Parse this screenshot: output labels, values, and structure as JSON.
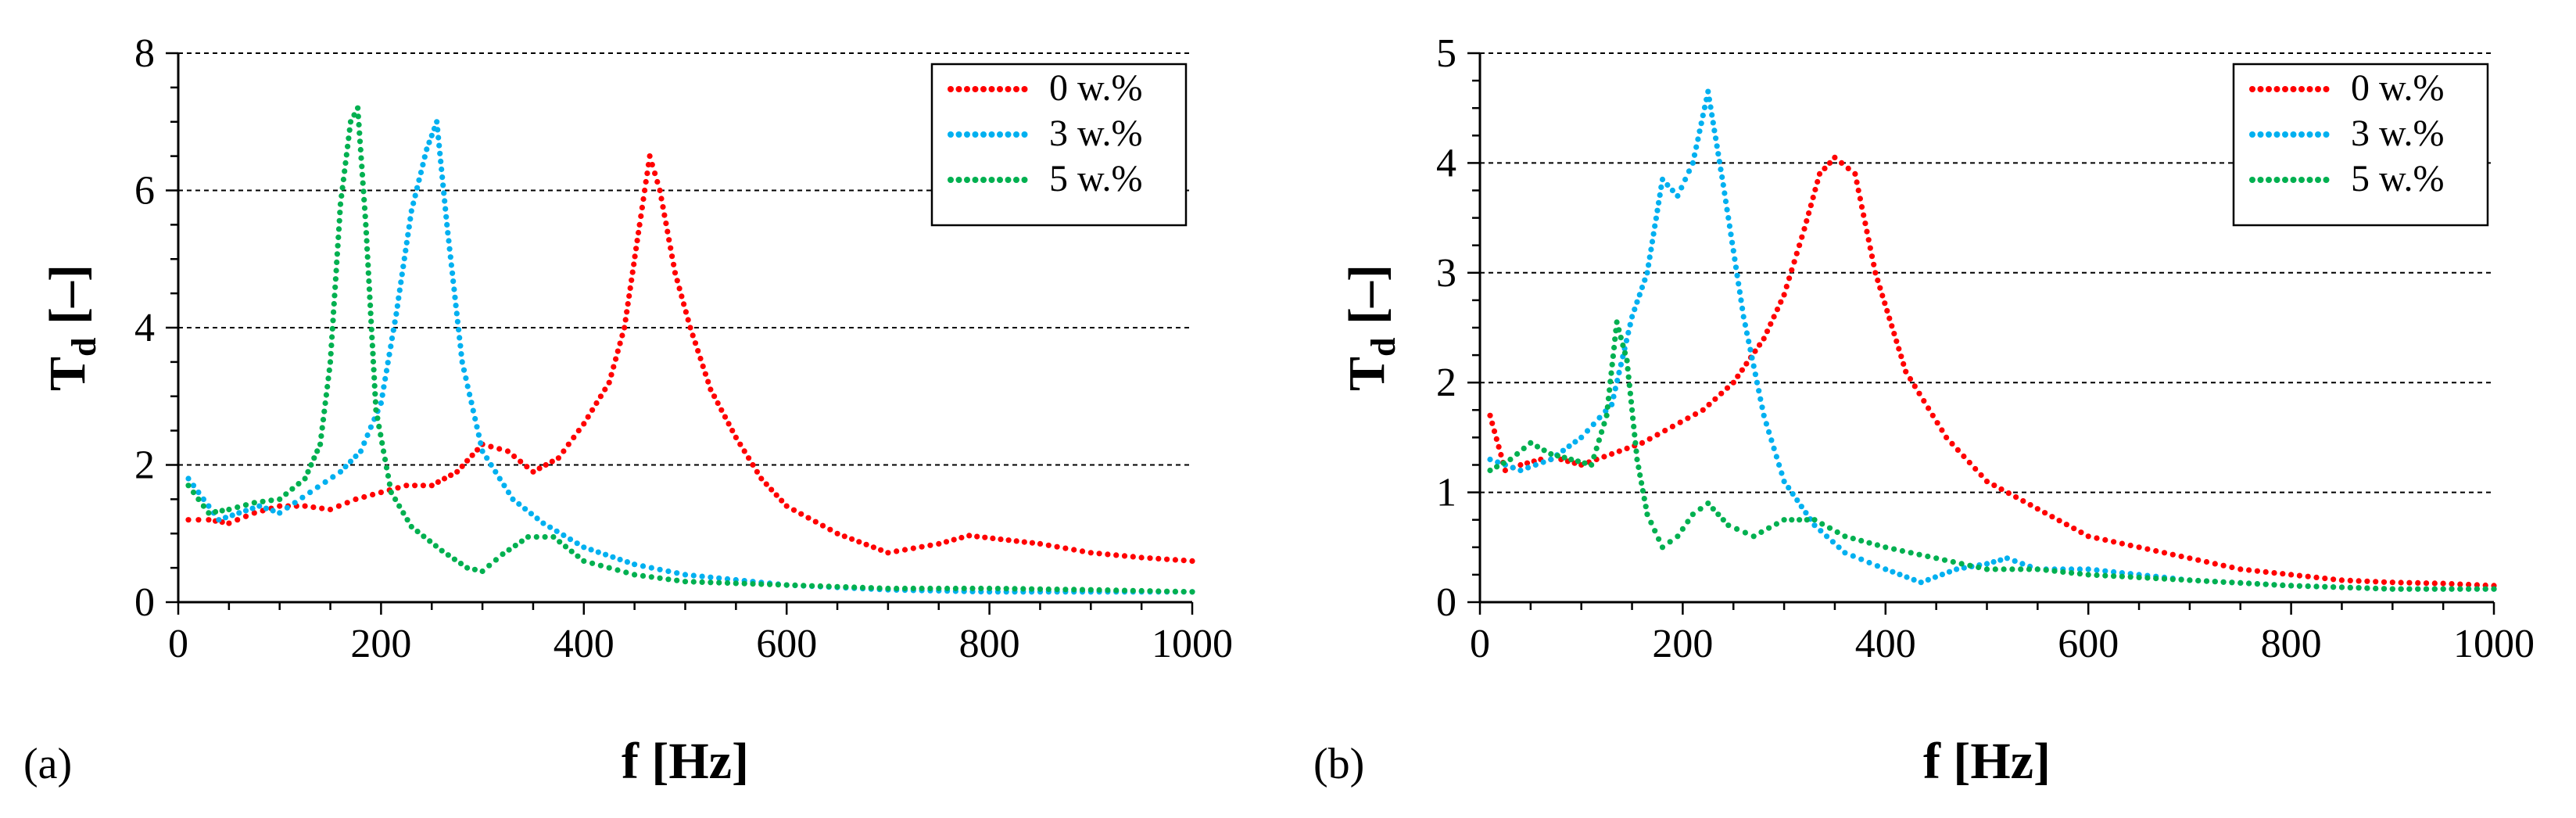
{
  "chart_data": [
    {
      "type": "line",
      "panel_label": "(a)",
      "xlabel": "f [Hz]",
      "ylabel_main": "T",
      "ylabel_sub": "d",
      "ylabel_unit": " [–]",
      "xlim": [
        0,
        1000
      ],
      "ylim": [
        0,
        8
      ],
      "xticks": [
        0,
        200,
        400,
        600,
        800,
        1000
      ],
      "yticks": [
        0,
        2,
        4,
        6,
        8
      ],
      "grid": "horizontal dashed",
      "legend_position": "top-right",
      "series": [
        {
          "name": "0 w.%",
          "color": "#ff0000",
          "x": [
            10,
            30,
            50,
            75,
            100,
            125,
            150,
            175,
            200,
            225,
            250,
            275,
            300,
            325,
            350,
            375,
            400,
            425,
            440,
            455,
            465,
            475,
            490,
            505,
            525,
            550,
            575,
            600,
            650,
            700,
            750,
            780,
            850,
            900,
            950,
            1000
          ],
          "y": [
            1.2,
            1.2,
            1.15,
            1.3,
            1.4,
            1.4,
            1.35,
            1.5,
            1.6,
            1.7,
            1.7,
            1.9,
            2.3,
            2.2,
            1.9,
            2.1,
            2.6,
            3.2,
            4.0,
            5.5,
            6.5,
            6.0,
            4.8,
            4.0,
            3.1,
            2.4,
            1.8,
            1.4,
            1.0,
            0.72,
            0.85,
            0.97,
            0.85,
            0.72,
            0.65,
            0.6
          ]
        },
        {
          "name": "3 w.%",
          "color": "#00b0f0",
          "x": [
            10,
            25,
            40,
            60,
            80,
            100,
            130,
            160,
            180,
            200,
            215,
            230,
            245,
            255,
            265,
            280,
            300,
            330,
            360,
            400,
            450,
            500,
            600,
            700,
            800,
            900,
            1000
          ],
          "y": [
            1.8,
            1.5,
            1.2,
            1.3,
            1.4,
            1.3,
            1.6,
            1.9,
            2.2,
            2.9,
            4.2,
            5.7,
            6.6,
            7.0,
            5.5,
            3.5,
            2.2,
            1.5,
            1.15,
            0.8,
            0.55,
            0.4,
            0.25,
            0.18,
            0.15,
            0.15,
            0.15
          ]
        },
        {
          "name": "5 w.%",
          "color": "#00b050",
          "x": [
            10,
            30,
            50,
            75,
            100,
            125,
            140,
            150,
            160,
            170,
            177,
            185,
            195,
            210,
            230,
            260,
            285,
            300,
            320,
            345,
            370,
            400,
            450,
            500,
            600,
            700,
            800,
            900,
            1000
          ],
          "y": [
            1.7,
            1.3,
            1.35,
            1.45,
            1.5,
            1.8,
            2.3,
            3.5,
            5.8,
            7.0,
            7.2,
            5.5,
            2.8,
            1.6,
            1.1,
            0.75,
            0.5,
            0.45,
            0.7,
            0.95,
            0.95,
            0.6,
            0.4,
            0.3,
            0.25,
            0.2,
            0.2,
            0.18,
            0.15
          ]
        }
      ]
    },
    {
      "type": "line",
      "panel_label": "(b)",
      "xlabel": "f [Hz]",
      "ylabel_main": "T",
      "ylabel_sub": "d",
      "ylabel_unit": " [–]",
      "xlim": [
        0,
        1000
      ],
      "ylim": [
        0,
        5
      ],
      "xticks": [
        0,
        200,
        400,
        600,
        800,
        1000
      ],
      "yticks": [
        0,
        1,
        2,
        3,
        4,
        5
      ],
      "grid": "horizontal dashed",
      "legend_position": "top-right",
      "series": [
        {
          "name": "0 w.%",
          "color": "#ff0000",
          "x": [
            10,
            25,
            40,
            60,
            80,
            100,
            130,
            160,
            190,
            220,
            250,
            280,
            300,
            320,
            335,
            350,
            370,
            390,
            420,
            460,
            500,
            550,
            600,
            650,
            700,
            750,
            800,
            850,
            900,
            950,
            1000
          ],
          "y": [
            1.7,
            1.2,
            1.25,
            1.3,
            1.3,
            1.25,
            1.35,
            1.45,
            1.6,
            1.75,
            2.0,
            2.4,
            2.8,
            3.4,
            3.9,
            4.05,
            3.9,
            3.0,
            2.1,
            1.5,
            1.1,
            0.85,
            0.6,
            0.5,
            0.4,
            0.3,
            0.25,
            0.2,
            0.18,
            0.17,
            0.15
          ]
        },
        {
          "name": "3 w.%",
          "color": "#00b0f0",
          "x": [
            10,
            40,
            70,
            100,
            130,
            150,
            165,
            180,
            195,
            210,
            225,
            240,
            260,
            280,
            300,
            330,
            360,
            400,
            435,
            470,
            500,
            520,
            550,
            600,
            700,
            800,
            900,
            1000
          ],
          "y": [
            1.3,
            1.2,
            1.3,
            1.5,
            1.8,
            2.6,
            3.0,
            3.85,
            3.7,
            4.0,
            4.65,
            3.8,
            2.6,
            1.7,
            1.1,
            0.7,
            0.45,
            0.3,
            0.18,
            0.3,
            0.35,
            0.4,
            0.3,
            0.3,
            0.2,
            0.15,
            0.12,
            0.12
          ]
        },
        {
          "name": "5 w.%",
          "color": "#00b050",
          "x": [
            10,
            30,
            50,
            70,
            90,
            110,
            125,
            135,
            145,
            155,
            165,
            180,
            195,
            210,
            225,
            245,
            270,
            300,
            330,
            360,
            400,
            450,
            500,
            550,
            600,
            700,
            800,
            900,
            1000
          ],
          "y": [
            1.2,
            1.3,
            1.45,
            1.35,
            1.3,
            1.25,
            1.7,
            2.55,
            2.2,
            1.3,
            0.8,
            0.5,
            0.6,
            0.8,
            0.9,
            0.7,
            0.6,
            0.75,
            0.75,
            0.6,
            0.5,
            0.4,
            0.3,
            0.3,
            0.25,
            0.2,
            0.15,
            0.12,
            0.12
          ]
        }
      ]
    }
  ]
}
